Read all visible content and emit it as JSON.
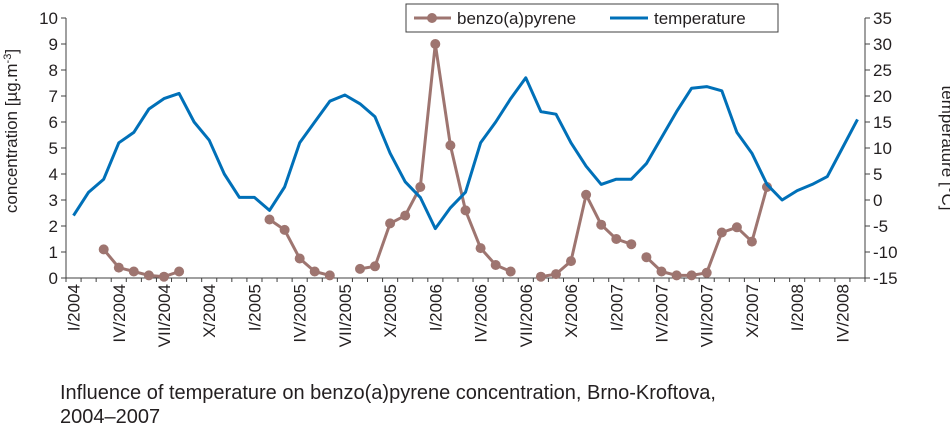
{
  "caption_line1": "Influence of temperature on benzo(a)pyrene concentration, Brno-Kroftova,",
  "caption_line2": "2004–2007",
  "chart_data": {
    "type": "line",
    "ylabel_left": "concentration [µg.m⁻³]",
    "ylabel_left_main": "concentration [µg.m",
    "ylabel_left_sup": "-3",
    "ylabel_left_close": "]",
    "ylabel_right": "temperature [°C]",
    "ylim_left": [
      0,
      10
    ],
    "ylim_right": [
      -15,
      35
    ],
    "yticks_left": [
      0,
      1,
      2,
      3,
      4,
      5,
      6,
      7,
      8,
      9,
      10
    ],
    "yticks_right": [
      -15,
      -10,
      -5,
      0,
      5,
      10,
      15,
      20,
      25,
      30,
      35
    ],
    "grid": false,
    "legend_position": "top",
    "x_tick_labels": [
      {
        "month": 0,
        "label": "I/2004"
      },
      {
        "month": 3,
        "label": "IV/2004"
      },
      {
        "month": 6,
        "label": "VII/2004"
      },
      {
        "month": 9,
        "label": "X/2004"
      },
      {
        "month": 12,
        "label": "I/2005"
      },
      {
        "month": 15,
        "label": "IV/2005"
      },
      {
        "month": 18,
        "label": "VII/2005"
      },
      {
        "month": 21,
        "label": "X/2005"
      },
      {
        "month": 24,
        "label": "I/2006"
      },
      {
        "month": 27,
        "label": "IV/2006"
      },
      {
        "month": 30,
        "label": "VII/2006"
      },
      {
        "month": 33,
        "label": "X/2006"
      },
      {
        "month": 36,
        "label": "I/2007"
      },
      {
        "month": 39,
        "label": "IV/2007"
      },
      {
        "month": 42,
        "label": "VII/2007"
      },
      {
        "month": 45,
        "label": "X/2007"
      },
      {
        "month": 48,
        "label": "I/2008"
      },
      {
        "month": 51,
        "label": "IV/2008"
      }
    ],
    "series": [
      {
        "name": "benzo(a)pyrene",
        "axis": "left",
        "color": "#9e7570",
        "marker": "circle",
        "points": [
          [
            2,
            1.1
          ],
          [
            3,
            0.4
          ],
          [
            4,
            0.25
          ],
          [
            5,
            0.1
          ],
          [
            6,
            0.05
          ],
          [
            7,
            0.25
          ],
          null,
          [
            13,
            2.25
          ],
          [
            14,
            1.85
          ],
          [
            15,
            0.75
          ],
          [
            16,
            0.25
          ],
          [
            17,
            0.1
          ],
          null,
          [
            19,
            0.35
          ],
          [
            20,
            0.45
          ],
          [
            21,
            2.1
          ],
          [
            22,
            2.4
          ],
          [
            23,
            3.5
          ],
          [
            24,
            9.0
          ],
          [
            25,
            5.1
          ],
          [
            26,
            2.6
          ],
          [
            27,
            1.15
          ],
          [
            28,
            0.5
          ],
          [
            29,
            0.25
          ],
          null,
          [
            31,
            0.05
          ],
          [
            32,
            0.15
          ],
          [
            33,
            0.65
          ],
          [
            34,
            3.2
          ],
          [
            35,
            2.05
          ],
          [
            36,
            1.5
          ],
          [
            37,
            1.3
          ],
          null,
          [
            38,
            0.8
          ],
          [
            39,
            0.25
          ],
          [
            40,
            0.1
          ],
          [
            41,
            0.1
          ],
          [
            42,
            0.2
          ],
          [
            43,
            1.75
          ],
          [
            44,
            1.95
          ],
          [
            45,
            1.4
          ],
          [
            46,
            3.5
          ]
        ]
      },
      {
        "name": "temperature",
        "axis": "right",
        "color": "#0070b8",
        "marker": "none",
        "points": [
          [
            0,
            -3
          ],
          [
            1,
            1.5
          ],
          [
            2,
            4
          ],
          [
            3,
            11
          ],
          [
            4,
            13
          ],
          [
            5,
            17.5
          ],
          [
            6,
            19.5
          ],
          [
            7,
            20.5
          ],
          [
            8,
            15
          ],
          [
            9,
            11.5
          ],
          [
            10,
            5
          ],
          [
            11,
            0.5
          ],
          [
            12,
            0.5
          ],
          [
            13,
            -2
          ],
          [
            14,
            2.5
          ],
          [
            15,
            11
          ],
          [
            16,
            15
          ],
          [
            17,
            19
          ],
          [
            18,
            20.2
          ],
          [
            19,
            18.5
          ],
          [
            20,
            16
          ],
          [
            21,
            9
          ],
          [
            22,
            3.5
          ],
          [
            23,
            0.5
          ],
          [
            24,
            -5.5
          ],
          [
            25,
            -1.5
          ],
          [
            26,
            1.5
          ],
          [
            27,
            11
          ],
          [
            28,
            15
          ],
          [
            29,
            19.5
          ],
          [
            30,
            23.5
          ],
          [
            31,
            17
          ],
          [
            32,
            16.5
          ],
          [
            33,
            11
          ],
          [
            34,
            6.5
          ],
          [
            35,
            3
          ],
          [
            36,
            4
          ],
          [
            37,
            4
          ],
          [
            38,
            7
          ],
          [
            39,
            12
          ],
          [
            40,
            17
          ],
          [
            41,
            21.5
          ],
          [
            42,
            21.8
          ],
          [
            43,
            21
          ],
          [
            44,
            13
          ],
          [
            45,
            9
          ],
          [
            46,
            3
          ],
          [
            47,
            0
          ],
          [
            48,
            1.8
          ],
          [
            49,
            3
          ],
          [
            50,
            4.5
          ],
          [
            51,
            10
          ],
          [
            52,
            15.5
          ]
        ]
      }
    ]
  }
}
